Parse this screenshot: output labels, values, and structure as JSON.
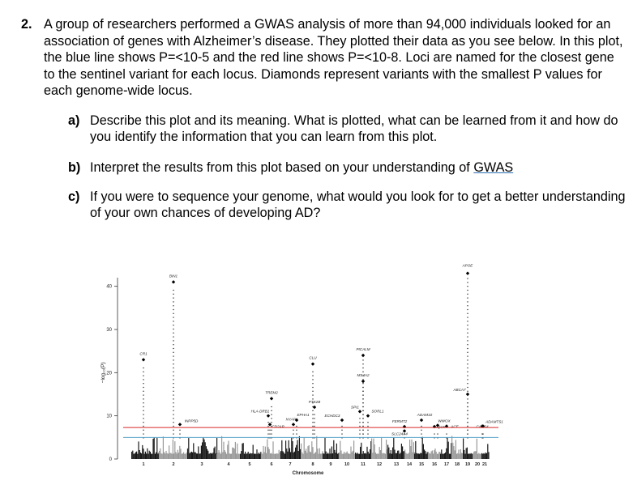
{
  "question": {
    "number": "2.",
    "text": "A group of researchers performed a GWAS analysis of more than 94,000 individuals looked for an association of genes with Alzheimer’s disease. They plotted their data as you see below. In this plot, the blue line shows P=<10-5 and the red line shows P=<10-8. Loci are named for the closest gene to the sentinel variant for each locus. Diamonds represent variants with the smallest P values for each genome-wide locus."
  },
  "subquestions": [
    {
      "label": "a)",
      "text": "Describe this plot and its meaning. What is plotted, what can be learned from it and how do you identify the information that you can learn from this plot."
    },
    {
      "label": "b)",
      "text_before": "Interpret the results from this plot based on your understanding of ",
      "text_link": "GWAS"
    },
    {
      "label": "c)",
      "text": "If you were to sequence your genome, what would you look for to get a better understanding of your own chances of developing AD?"
    }
  ],
  "chart_data": {
    "type": "scatter",
    "xlabel": "Chromosome",
    "ylabel": "−log₁₀(P)",
    "ylim": [
      0,
      45
    ],
    "yticks": [
      0,
      10,
      20,
      30,
      40
    ],
    "chromosomes": [
      "1",
      "2",
      "3",
      "4",
      "5",
      "6",
      "7",
      "8",
      "9",
      "10",
      "11",
      "12",
      "13",
      "14",
      "15",
      "16",
      "17",
      "18",
      "19",
      "20",
      "21"
    ],
    "thresholds": [
      {
        "name": "blue line",
        "value": 5,
        "color": "#5ba3c9"
      },
      {
        "name": "red line",
        "value": 7.3,
        "color": "#d62728"
      }
    ],
    "loci": [
      {
        "gene": "CR1",
        "chr": "1",
        "value": 23
      },
      {
        "gene": "BIN1",
        "chr": "2",
        "value": 41
      },
      {
        "gene": "INPP5D",
        "chr": "2",
        "value": 8
      },
      {
        "gene": "HLA-DRB1",
        "chr": "6",
        "value": 10
      },
      {
        "gene": "TREM2",
        "chr": "6",
        "value": 14
      },
      {
        "gene": "CD2AP",
        "chr": "6",
        "value": 8
      },
      {
        "gene": "NYAP1",
        "chr": "7",
        "value": 8
      },
      {
        "gene": "EPHA1",
        "chr": "7",
        "value": 9
      },
      {
        "gene": "PTK2B",
        "chr": "8",
        "value": 12
      },
      {
        "gene": "CLU",
        "chr": "8",
        "value": 22
      },
      {
        "gene": "ECHDC3",
        "chr": "10",
        "value": 9
      },
      {
        "gene": "SPI1",
        "chr": "11",
        "value": 11
      },
      {
        "gene": "MS4A2",
        "chr": "11",
        "value": 18
      },
      {
        "gene": "PICALM",
        "chr": "11",
        "value": 24
      },
      {
        "gene": "SORL1",
        "chr": "11",
        "value": 10
      },
      {
        "gene": "FERMT2",
        "chr": "14",
        "value": 7.5
      },
      {
        "gene": "SLC24A4",
        "chr": "14",
        "value": 6.5
      },
      {
        "gene": "ADAM10",
        "chr": "15",
        "value": 9
      },
      {
        "gene": "WWOX",
        "chr": "16",
        "value": 7.8
      },
      {
        "gene": "IQCK",
        "chr": "16",
        "value": 7.5
      },
      {
        "gene": "ACE",
        "chr": "17",
        "value": 7.6
      },
      {
        "gene": "ABCA7",
        "chr": "19",
        "value": 15
      },
      {
        "gene": "APOE",
        "chr": "19",
        "value": 43
      },
      {
        "gene": "CASS4",
        "chr": "20",
        "value": 7.6
      },
      {
        "gene": "ADAMTS1",
        "chr": "21",
        "value": 7.6
      }
    ]
  }
}
